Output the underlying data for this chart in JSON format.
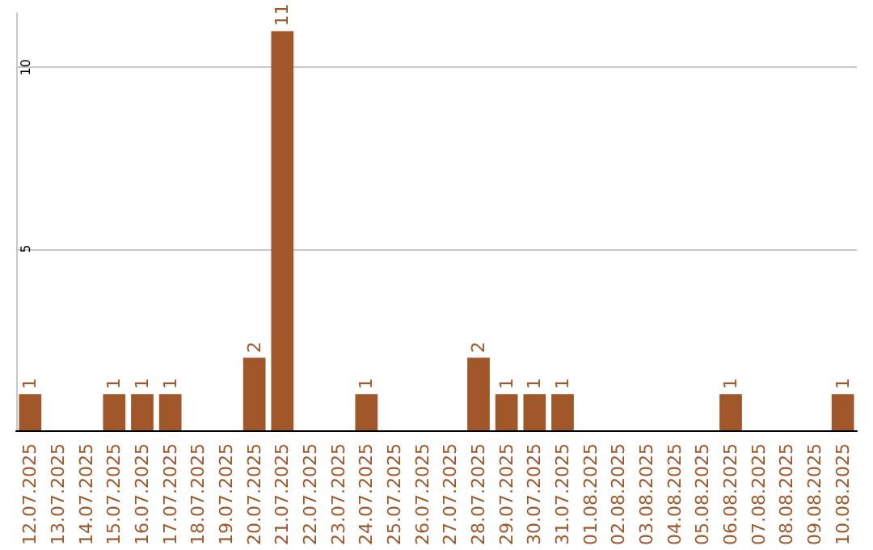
{
  "chart_data": {
    "type": "bar",
    "categories": [
      "12.07.2025",
      "13.07.2025",
      "14.07.2025",
      "15.07.2025",
      "16.07.2025",
      "17.07.2025",
      "18.07.2025",
      "19.07.2025",
      "20.07.2025",
      "21.07.2025",
      "22.07.2025",
      "23.07.2025",
      "24.07.2025",
      "25.07.2025",
      "26.07.2025",
      "27.07.2025",
      "28.07.2025",
      "29.07.2025",
      "30.07.2025",
      "31.07.2025",
      "01.08.2025",
      "02.08.2025",
      "03.08.2025",
      "04.08.2025",
      "05.08.2025",
      "06.08.2025",
      "07.08.2025",
      "08.08.2025",
      "09.08.2025",
      "10.08.2025"
    ],
    "values": [
      1,
      0,
      0,
      1,
      1,
      1,
      0,
      0,
      2,
      11,
      0,
      0,
      1,
      0,
      0,
      0,
      2,
      1,
      1,
      1,
      0,
      0,
      0,
      0,
      0,
      1,
      0,
      0,
      0,
      1
    ],
    "value_labels": [
      "1",
      null,
      null,
      "1",
      "1",
      "1",
      null,
      null,
      "2",
      "11",
      null,
      null,
      "1",
      null,
      null,
      null,
      "2",
      "1",
      "1",
      "1",
      null,
      null,
      null,
      null,
      null,
      "1",
      null,
      null,
      null,
      "1"
    ],
    "color": "#a0582a",
    "ylim": [
      0,
      11.5
    ],
    "yticks": [
      5,
      10
    ],
    "grid": "y"
  }
}
